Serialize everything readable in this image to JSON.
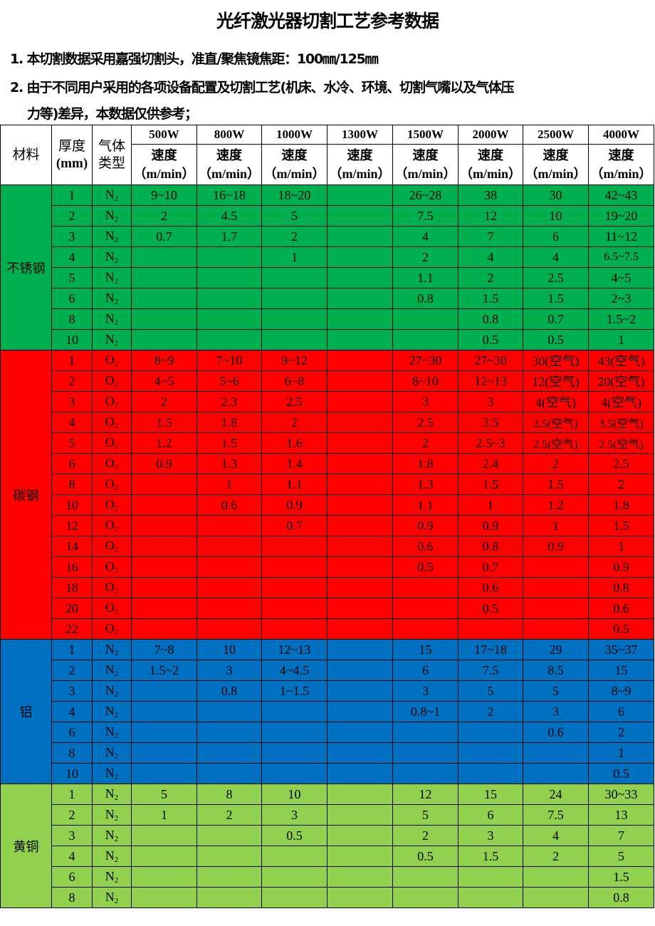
{
  "title": "光纤激光器切割工艺参考数据",
  "notes": [
    "1. 本切割数据采用嘉强切割头，准直/聚焦镜焦距：100㎜/125㎜",
    "2. 由于不同用户采用的各项设备配置及切割工艺(机床、水冷、环境、切割气嘴以及气体压",
    "力等)差异，本数据仅供参考；"
  ],
  "table": {
    "headers": {
      "material": "材料",
      "thickness": "厚度",
      "thickness_unit": "(mm)",
      "gas_1": "气体",
      "gas_2": "类型",
      "speed": "速度",
      "speed_unit": "（m/min）",
      "powers": [
        "500W",
        "800W",
        "1000W",
        "1300W",
        "1500W",
        "2000W",
        "2500W",
        "4000W"
      ]
    },
    "groups": [
      {
        "material": "不锈钢",
        "color": "#00b050",
        "gas": "N",
        "gas_sub": "2",
        "rows": [
          {
            "thickness": "1",
            "values": [
              "9~10",
              "16~18",
              "18~20",
              "",
              "26~28",
              "38",
              "30",
              "42~43"
            ]
          },
          {
            "thickness": "2",
            "values": [
              "2",
              "4.5",
              "5",
              "",
              "7.5",
              "12",
              "10",
              "19~20"
            ]
          },
          {
            "thickness": "3",
            "values": [
              "0.7",
              "1.7",
              "2",
              "",
              "4",
              "7",
              "6",
              "11~12"
            ]
          },
          {
            "thickness": "4",
            "values": [
              "",
              "",
              "1",
              "",
              "2",
              "4",
              "4",
              "6.5~7.5"
            ]
          },
          {
            "thickness": "5",
            "values": [
              "",
              "",
              "",
              "",
              "1.1",
              "2",
              "2.5",
              "4~5"
            ]
          },
          {
            "thickness": "6",
            "values": [
              "",
              "",
              "",
              "",
              "0.8",
              "1.5",
              "1.5",
              "2~3"
            ]
          },
          {
            "thickness": "8",
            "values": [
              "",
              "",
              "",
              "",
              "",
              "0.8",
              "0.7",
              "1.5~2"
            ]
          },
          {
            "thickness": "10",
            "values": [
              "",
              "",
              "",
              "",
              "",
              "0.5",
              "0.5",
              "1"
            ]
          }
        ]
      },
      {
        "material": "碳钢",
        "color": "#ff0000",
        "gas": "O",
        "gas_sub": "2",
        "rows": [
          {
            "thickness": "1",
            "values": [
              "8~9",
              "7~10",
              "9~12",
              "",
              "27~30",
              "27~30",
              "30(空气)",
              "43(空气)"
            ]
          },
          {
            "thickness": "2",
            "values": [
              "4~5",
              "5~6",
              "6~8",
              "",
              "8~10",
              "12~13",
              "12(空气)",
              "20(空气)"
            ]
          },
          {
            "thickness": "3",
            "values": [
              "2",
              "2.3",
              "2.5",
              "",
              "3",
              "3",
              "4(空气)",
              "4(空气)"
            ]
          },
          {
            "thickness": "4",
            "values": [
              "1.5",
              "1.8",
              "2",
              "",
              "2.5",
              "3.5",
              "3.5(空气)",
              "3.5(空气)"
            ]
          },
          {
            "thickness": "5",
            "values": [
              "1.2",
              "1.5",
              "1.6",
              "",
              "2",
              "2.5~3",
              "2.5(空气)",
              "2.5(空气)"
            ]
          },
          {
            "thickness": "6",
            "values": [
              "0.9",
              "1.3",
              "1.4",
              "",
              "1.8",
              "2.4",
              "2",
              "2.5"
            ]
          },
          {
            "thickness": "8",
            "values": [
              "",
              "1",
              "1.1",
              "",
              "1.3",
              "1.5",
              "1.5",
              "2"
            ]
          },
          {
            "thickness": "10",
            "values": [
              "",
              "0.6",
              "0.9",
              "",
              "1.1",
              "1",
              "1.2",
              "1.8"
            ]
          },
          {
            "thickness": "12",
            "values": [
              "",
              "",
              "0.7",
              "",
              "0.9",
              "0.9",
              "1",
              "1.5"
            ]
          },
          {
            "thickness": "14",
            "values": [
              "",
              "",
              "",
              "",
              "0.6",
              "0.8",
              "0.9",
              "1"
            ]
          },
          {
            "thickness": "16",
            "values": [
              "",
              "",
              "",
              "",
              "0.5",
              "0.7",
              "",
              "0.9"
            ]
          },
          {
            "thickness": "18",
            "values": [
              "",
              "",
              "",
              "",
              "",
              "0.6",
              "",
              "0.8"
            ]
          },
          {
            "thickness": "20",
            "values": [
              "",
              "",
              "",
              "",
              "",
              "0.5",
              "",
              "0.6"
            ]
          },
          {
            "thickness": "22",
            "values": [
              "",
              "",
              "",
              "",
              "",
              "",
              "",
              "0.5"
            ]
          }
        ]
      },
      {
        "material": "铝",
        "color": "#0070c0",
        "gas": "N",
        "gas_sub": "2",
        "rows": [
          {
            "thickness": "1",
            "values": [
              "7~8",
              "10",
              "12~13",
              "",
              "15",
              "17~18",
              "29",
              "35~37"
            ]
          },
          {
            "thickness": "2",
            "values": [
              "1.5~2",
              "3",
              "4~4.5",
              "",
              "6",
              "7.5",
              "8.5",
              "15"
            ]
          },
          {
            "thickness": "3",
            "values": [
              "",
              "0.8",
              "1~1.5",
              "",
              "3",
              "5",
              "5",
              "8~9"
            ]
          },
          {
            "thickness": "4",
            "values": [
              "",
              "",
              "",
              "",
              "0.8~1",
              "2",
              "3",
              "6"
            ]
          },
          {
            "thickness": "6",
            "values": [
              "",
              "",
              "",
              "",
              "",
              "",
              "0.6",
              "2"
            ]
          },
          {
            "thickness": "8",
            "values": [
              "",
              "",
              "",
              "",
              "",
              "",
              "",
              "1"
            ]
          },
          {
            "thickness": "10",
            "values": [
              "",
              "",
              "",
              "",
              "",
              "",
              "",
              "0.5"
            ]
          }
        ]
      },
      {
        "material": "黄铜",
        "color": "#92d050",
        "gas": "N",
        "gas_sub": "2",
        "rows": [
          {
            "thickness": "1",
            "values": [
              "5",
              "8",
              "10",
              "",
              "12",
              "15",
              "24",
              "30~33"
            ]
          },
          {
            "thickness": "2",
            "values": [
              "1",
              "2",
              "3",
              "",
              "5",
              "6",
              "7.5",
              "13"
            ]
          },
          {
            "thickness": "3",
            "values": [
              "",
              "",
              "0.5",
              "",
              "2",
              "3",
              "4",
              "7"
            ]
          },
          {
            "thickness": "4",
            "values": [
              "",
              "",
              "",
              "",
              "0.5",
              "1.5",
              "2",
              "5"
            ]
          },
          {
            "thickness": "6",
            "values": [
              "",
              "",
              "",
              "",
              "",
              "",
              "",
              "1.5"
            ]
          },
          {
            "thickness": "8",
            "values": [
              "",
              "",
              "",
              "",
              "",
              "",
              "",
              "0.8"
            ]
          }
        ]
      }
    ]
  }
}
